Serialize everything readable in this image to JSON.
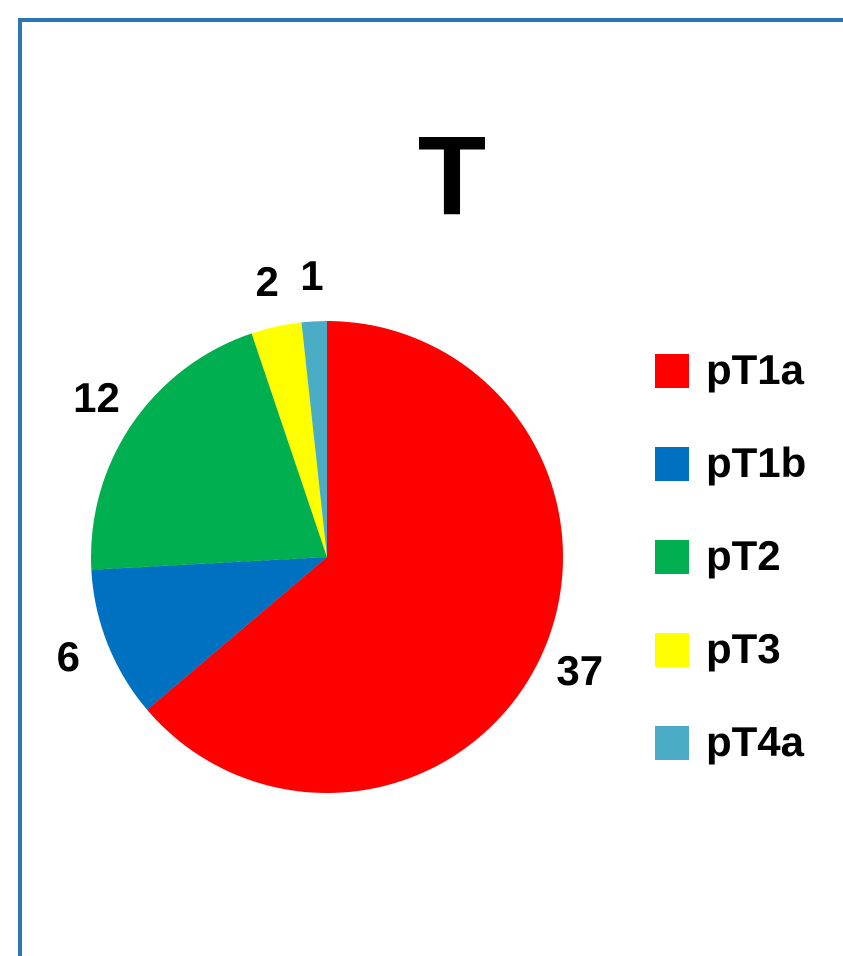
{
  "chart_data": {
    "type": "pie",
    "title": "T",
    "categories": [
      "pT1a",
      "pT1b",
      "pT2",
      "pT3",
      "pT4a"
    ],
    "values": [
      37,
      6,
      12,
      2,
      1
    ],
    "colors": [
      "#ff0000",
      "#0070c0",
      "#00b050",
      "#ffff00",
      "#4bacc6"
    ],
    "legend": "right"
  }
}
